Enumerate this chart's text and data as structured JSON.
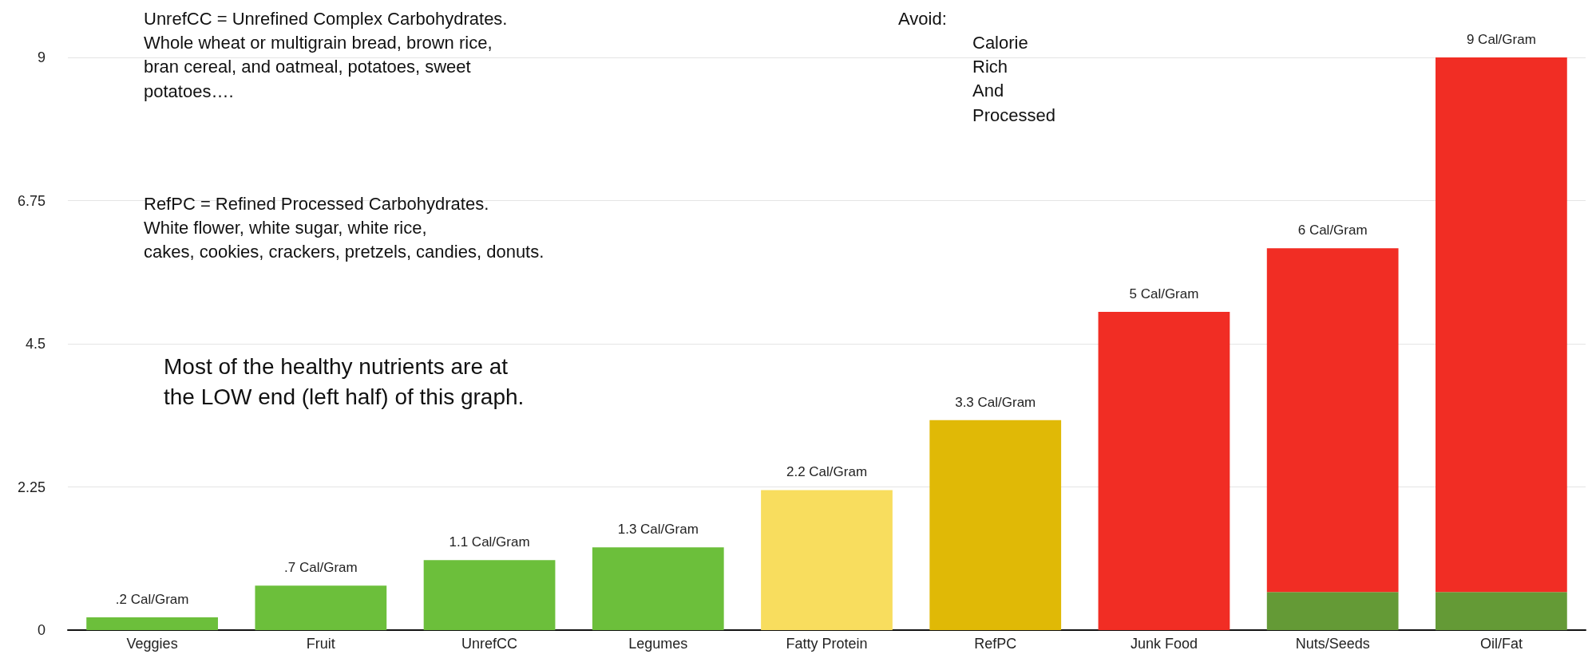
{
  "chart_data": {
    "type": "bar",
    "stacked": true,
    "categories": [
      "Veggies",
      "Fruit",
      "UnrefCC",
      "Legumes",
      "Fatty Protein",
      "RefPC",
      "Junk Food",
      "Nuts/Seeds",
      "Oil/Fat"
    ],
    "series": [
      {
        "values": [
          0.2,
          0.7,
          1.1,
          1.3,
          2.2,
          3.3,
          5,
          0.6,
          0.6
        ],
        "colors": [
          "#6cbf3b",
          "#6cbf3b",
          "#6cbf3b",
          "#6cbf3b",
          "#f8dd5e",
          "#e0b906",
          "#f12d24",
          "#649a36",
          "#649a36"
        ]
      },
      {
        "values": [
          null,
          null,
          null,
          null,
          null,
          null,
          null,
          5.4,
          8.4
        ],
        "color": "#f12d24"
      }
    ],
    "totals": [
      ".2 Cal/Gram",
      ".7 Cal/Gram",
      "1.1 Cal/Gram",
      "1.3 Cal/Gram",
      "2.2 Cal/Gram",
      "3.3 Cal/Gram",
      "5 Cal/Gram",
      "6 Cal/Gram",
      "9 Cal/Gram"
    ],
    "ylim": [
      0,
      9
    ],
    "yticks": [
      0,
      2.25,
      4.5,
      6.75,
      9
    ],
    "grid": "y",
    "annotations": [
      "UnrefCC = Unrefined Complex Carbohydrates.\nWhole wheat or multigrain bread, brown rice,\nbran cereal, and oatmeal, potatoes, sweet\npotatoes….",
      "RefPC = Refined Processed Carbohydrates.\nWhite flower, white sugar, white rice,\ncakes, cookies, crackers, pretzels, candies, donuts.",
      "Most of the healthy nutrients are at\nthe LOW end (left half) of this graph.",
      "Avoid:",
      "Calorie\nRich\nAnd\nProcessed"
    ]
  }
}
